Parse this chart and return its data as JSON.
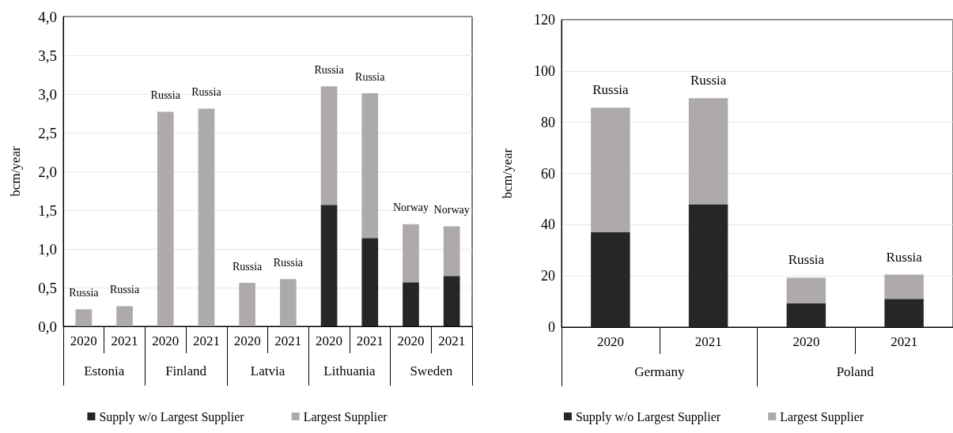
{
  "chart_data": [
    {
      "type": "bar",
      "stacked": true,
      "ylabel": "bcm/year",
      "categories": [
        "2020",
        "2021",
        "2020",
        "2021",
        "2020",
        "2021",
        "2020",
        "2021",
        "2020",
        "2021"
      ],
      "annotations": [
        "Estonia",
        "Finland",
        "Latvia",
        "Lithuania",
        "Sweden"
      ],
      "series": [
        {
          "name": "Supply w/o Largest Supplier",
          "color": "#262626",
          "values": [
            0,
            0,
            0,
            0,
            0,
            0,
            1.57,
            1.14,
            0.57,
            0.65
          ]
        },
        {
          "name": "Largest Supplier",
          "color": "#aeaaaa",
          "values": [
            0.22,
            0.26,
            2.77,
            2.81,
            0.56,
            0.61,
            1.53,
            1.87,
            0.75,
            0.64
          ],
          "value_labels": [
            "Russia",
            "Russia",
            "Russia",
            "Russia",
            "Russia",
            "Russia",
            "Russia",
            "Russia",
            "Norway",
            "Norway"
          ]
        }
      ],
      "ylim": [
        0,
        4
      ],
      "yticks": [
        {
          "value": 0,
          "label": "0,0"
        },
        {
          "value": 0.5,
          "label": "0,5"
        },
        {
          "value": 1,
          "label": "1,0"
        },
        {
          "value": 1.5,
          "label": "1,5"
        },
        {
          "value": 2,
          "label": "2,0"
        },
        {
          "value": 2.5,
          "label": "2,5"
        },
        {
          "value": 3,
          "label": "3,0"
        },
        {
          "value": 3.5,
          "label": "3,5"
        },
        {
          "value": 4,
          "label": "4,0"
        }
      ],
      "grid": "y",
      "legend": "bottom"
    },
    {
      "type": "bar",
      "stacked": true,
      "ylabel": "bcm/year",
      "categories": [
        "2020",
        "2021",
        "2020",
        "2021"
      ],
      "annotations": [
        "Germany",
        "Poland"
      ],
      "series": [
        {
          "name": "Supply w/o Largest Supplier",
          "color": "#262626",
          "values": [
            37,
            48,
            9.3,
            11
          ]
        },
        {
          "name": "Largest Supplier",
          "color": "#aeaaaa",
          "values": [
            48.7,
            41.4,
            10,
            9.5
          ],
          "value_labels": [
            "Russia",
            "Russia",
            "Russia",
            "Russia"
          ]
        }
      ],
      "ylim": [
        0,
        120
      ],
      "yticks": [
        0,
        20,
        40,
        60,
        80,
        100,
        120
      ],
      "grid": "y",
      "legend": "bottom"
    }
  ]
}
